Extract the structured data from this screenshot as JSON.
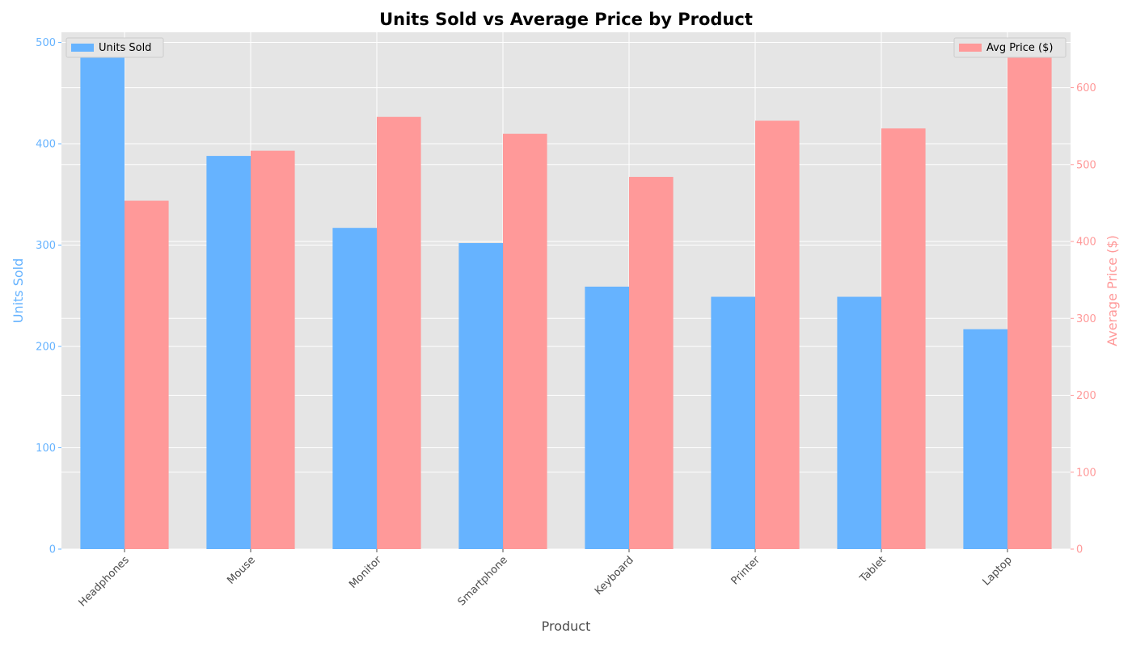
{
  "chart_data": {
    "type": "bar",
    "title": "Units Sold vs Average Price by Product",
    "xlabel": "Product",
    "ylabel_left": "Units Sold",
    "ylabel_right": "Average Price ($)",
    "categories": [
      "Headphones",
      "Mouse",
      "Monitor",
      "Smartphone",
      "Keyboard",
      "Printer",
      "Tablet",
      "Laptop"
    ],
    "series": [
      {
        "name": "Units Sold",
        "axis": "left",
        "color": "#66b3ff",
        "values": [
          500,
          388,
          317,
          302,
          259,
          249,
          249,
          217
        ]
      },
      {
        "name": "Avg Price ($)",
        "axis": "right",
        "color": "#ff9999",
        "values": [
          453,
          518,
          562,
          540,
          484,
          557,
          547,
          648
        ]
      }
    ],
    "ylim_left": [
      0,
      510
    ],
    "ylim_right": [
      0,
      672
    ],
    "yticks_left": [
      "0",
      "100",
      "200",
      "300",
      "400",
      "500"
    ],
    "yticks_right": [
      "0",
      "100",
      "200",
      "300",
      "400",
      "500",
      "600"
    ],
    "grid": true,
    "legend_left_position": "upper-left",
    "legend_right_position": "upper-right",
    "background": "#e5e5e5",
    "left_axis_color": "#66b3ff",
    "right_axis_color": "#ff9999",
    "xtick_color": "#4d4d4d"
  }
}
